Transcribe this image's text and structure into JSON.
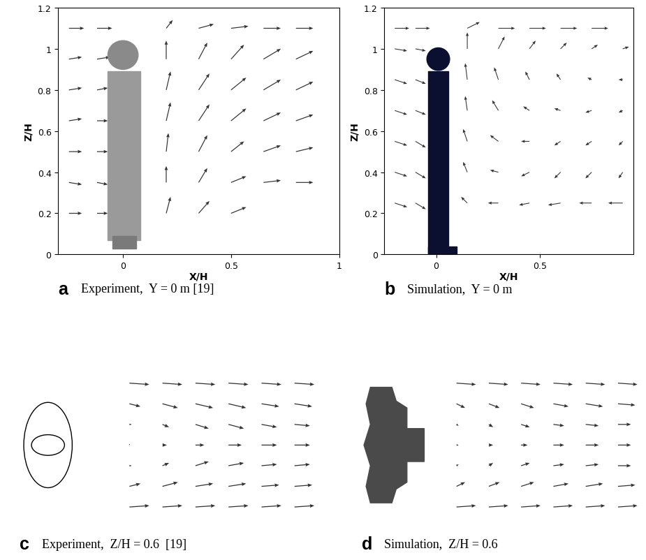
{
  "chart_data": [
    {
      "type": "quiver",
      "panel": "a",
      "caption": "Experiment,  Y = 0 m [19]",
      "x_label": "X/H",
      "y_label": "Z/H",
      "xlim": [
        -0.3,
        1
      ],
      "ylim": [
        0,
        1.2
      ],
      "xticks": [
        0,
        0.5,
        1
      ],
      "yticks": [
        0,
        0.2,
        0.4,
        0.6,
        0.8,
        1,
        1.2
      ],
      "color": "#333333",
      "vectors": [
        [
          -0.25,
          0.2,
          0.06,
          0.0
        ],
        [
          -0.12,
          0.2,
          0.05,
          0.0
        ],
        [
          0.2,
          0.2,
          0.02,
          0.08
        ],
        [
          0.35,
          0.2,
          0.05,
          0.06
        ],
        [
          0.5,
          0.2,
          0.07,
          0.03
        ],
        [
          -0.25,
          0.35,
          0.06,
          -0.01
        ],
        [
          -0.12,
          0.35,
          0.05,
          -0.01
        ],
        [
          0.2,
          0.35,
          0.0,
          0.08
        ],
        [
          0.35,
          0.35,
          0.04,
          0.07
        ],
        [
          0.5,
          0.35,
          0.07,
          0.03
        ],
        [
          0.65,
          0.35,
          0.08,
          0.01
        ],
        [
          0.8,
          0.35,
          0.08,
          0.0
        ],
        [
          -0.25,
          0.5,
          0.06,
          0.0
        ],
        [
          -0.12,
          0.5,
          0.05,
          0.0
        ],
        [
          0.2,
          0.5,
          0.01,
          0.09
        ],
        [
          0.35,
          0.5,
          0.04,
          0.08
        ],
        [
          0.5,
          0.5,
          0.06,
          0.05
        ],
        [
          0.65,
          0.5,
          0.08,
          0.03
        ],
        [
          0.8,
          0.5,
          0.08,
          0.02
        ],
        [
          -0.25,
          0.65,
          0.06,
          0.01
        ],
        [
          -0.12,
          0.65,
          0.05,
          0.0
        ],
        [
          0.2,
          0.65,
          0.02,
          0.09
        ],
        [
          0.35,
          0.65,
          0.05,
          0.08
        ],
        [
          0.5,
          0.65,
          0.07,
          0.06
        ],
        [
          0.65,
          0.65,
          0.08,
          0.04
        ],
        [
          0.8,
          0.65,
          0.08,
          0.03
        ],
        [
          -0.25,
          0.8,
          0.06,
          0.01
        ],
        [
          -0.12,
          0.8,
          0.05,
          0.01
        ],
        [
          0.2,
          0.8,
          0.02,
          0.09
        ],
        [
          0.35,
          0.8,
          0.05,
          0.08
        ],
        [
          0.5,
          0.8,
          0.07,
          0.06
        ],
        [
          0.65,
          0.8,
          0.08,
          0.05
        ],
        [
          0.8,
          0.8,
          0.08,
          0.04
        ],
        [
          -0.25,
          0.95,
          0.06,
          0.01
        ],
        [
          -0.12,
          0.95,
          0.06,
          0.01
        ],
        [
          0.2,
          0.95,
          0.0,
          0.09
        ],
        [
          0.35,
          0.95,
          0.04,
          0.08
        ],
        [
          0.5,
          0.95,
          0.06,
          0.07
        ],
        [
          0.65,
          0.95,
          0.08,
          0.05
        ],
        [
          0.8,
          0.95,
          0.08,
          0.04
        ],
        [
          -0.25,
          1.1,
          0.07,
          0.0
        ],
        [
          -0.12,
          1.1,
          0.07,
          0.0
        ],
        [
          0.2,
          1.1,
          0.03,
          0.04
        ],
        [
          0.35,
          1.1,
          0.07,
          0.02
        ],
        [
          0.5,
          1.1,
          0.08,
          0.01
        ],
        [
          0.65,
          1.1,
          0.08,
          0.0
        ],
        [
          0.8,
          1.1,
          0.08,
          0.0
        ]
      ]
    },
    {
      "type": "quiver",
      "panel": "b",
      "caption": "Simulation,  Y = 0 m",
      "x_label": "X/H",
      "y_label": "Z/H",
      "xlim": [
        -0.25,
        0.95
      ],
      "ylim": [
        0,
        1.2
      ],
      "xticks": [
        0,
        0.5
      ],
      "yticks": [
        0,
        0.2,
        0.4,
        0.6,
        0.8,
        1,
        1.2
      ],
      "color": "#333333",
      "vectors": [
        [
          -0.2,
          1.1,
          0.07,
          0.0
        ],
        [
          -0.1,
          1.1,
          0.07,
          0.0
        ],
        [
          0.15,
          1.1,
          0.06,
          0.03
        ],
        [
          0.3,
          1.1,
          0.08,
          0.0
        ],
        [
          0.45,
          1.1,
          0.08,
          0.0
        ],
        [
          0.6,
          1.1,
          0.08,
          0.0
        ],
        [
          0.75,
          1.1,
          0.08,
          0.0
        ],
        [
          -0.2,
          1.0,
          0.06,
          -0.01
        ],
        [
          -0.1,
          1.0,
          0.05,
          -0.01
        ],
        [
          0.15,
          1.0,
          0.0,
          0.08
        ],
        [
          0.3,
          1.0,
          0.03,
          0.06
        ],
        [
          0.45,
          1.0,
          0.03,
          0.04
        ],
        [
          0.6,
          1.0,
          0.03,
          0.03
        ],
        [
          0.75,
          1.0,
          0.03,
          0.02
        ],
        [
          0.9,
          1.0,
          0.03,
          0.01
        ],
        [
          -0.2,
          0.85,
          0.06,
          -0.02
        ],
        [
          -0.1,
          0.85,
          0.05,
          -0.02
        ],
        [
          0.15,
          0.85,
          -0.01,
          0.08
        ],
        [
          0.3,
          0.85,
          -0.02,
          0.06
        ],
        [
          0.45,
          0.85,
          -0.02,
          0.04
        ],
        [
          0.6,
          0.85,
          -0.02,
          0.03
        ],
        [
          0.75,
          0.85,
          -0.02,
          0.01
        ],
        [
          0.9,
          0.85,
          -0.02,
          0.0
        ],
        [
          -0.2,
          0.7,
          0.06,
          -0.02
        ],
        [
          -0.1,
          0.7,
          0.05,
          -0.02
        ],
        [
          0.15,
          0.7,
          -0.01,
          0.07
        ],
        [
          0.3,
          0.7,
          -0.03,
          0.05
        ],
        [
          0.45,
          0.7,
          -0.03,
          0.02
        ],
        [
          0.6,
          0.7,
          -0.03,
          0.01
        ],
        [
          0.75,
          0.7,
          -0.03,
          -0.01
        ],
        [
          0.9,
          0.7,
          -0.02,
          -0.01
        ],
        [
          -0.2,
          0.55,
          0.06,
          -0.02
        ],
        [
          -0.1,
          0.55,
          0.05,
          -0.03
        ],
        [
          0.15,
          0.55,
          -0.02,
          0.06
        ],
        [
          0.3,
          0.55,
          -0.04,
          0.03
        ],
        [
          0.45,
          0.55,
          -0.04,
          0.0
        ],
        [
          0.6,
          0.55,
          -0.03,
          -0.02
        ],
        [
          0.75,
          0.55,
          -0.03,
          -0.02
        ],
        [
          0.9,
          0.55,
          -0.02,
          -0.02
        ],
        [
          -0.2,
          0.4,
          0.06,
          -0.02
        ],
        [
          -0.1,
          0.4,
          0.05,
          -0.03
        ],
        [
          0.15,
          0.4,
          -0.02,
          0.05
        ],
        [
          0.3,
          0.4,
          -0.04,
          0.01
        ],
        [
          0.45,
          0.4,
          -0.04,
          -0.02
        ],
        [
          0.6,
          0.4,
          -0.03,
          -0.03
        ],
        [
          0.75,
          0.4,
          -0.03,
          -0.03
        ],
        [
          0.9,
          0.4,
          -0.02,
          -0.03
        ],
        [
          -0.2,
          0.25,
          0.06,
          -0.02
        ],
        [
          -0.1,
          0.25,
          0.05,
          -0.03
        ],
        [
          0.15,
          0.25,
          -0.03,
          0.03
        ],
        [
          0.3,
          0.25,
          -0.05,
          0.0
        ],
        [
          0.45,
          0.25,
          -0.05,
          -0.01
        ],
        [
          0.6,
          0.25,
          -0.06,
          -0.01
        ],
        [
          0.75,
          0.25,
          -0.06,
          0.0
        ],
        [
          0.9,
          0.25,
          -0.07,
          0.0
        ]
      ]
    },
    {
      "type": "quiver",
      "panel": "c",
      "caption": "Experiment,  Z/H = 0.6  [19]",
      "xlim": [
        -0.3,
        1.05
      ],
      "ylim": [
        -0.55,
        0.55
      ],
      "tick_labels": false,
      "color": "#333333",
      "vectors": [
        [
          0.2,
          0.45,
          0.09,
          -0.01
        ],
        [
          0.35,
          0.45,
          0.09,
          -0.01
        ],
        [
          0.5,
          0.45,
          0.09,
          -0.01
        ],
        [
          0.65,
          0.45,
          0.09,
          -0.01
        ],
        [
          0.8,
          0.45,
          0.09,
          -0.01
        ],
        [
          0.95,
          0.45,
          0.09,
          -0.01
        ],
        [
          0.2,
          0.3,
          0.05,
          -0.02
        ],
        [
          0.35,
          0.3,
          0.07,
          -0.03
        ],
        [
          0.5,
          0.3,
          0.08,
          -0.03
        ],
        [
          0.65,
          0.3,
          0.08,
          -0.03
        ],
        [
          0.8,
          0.3,
          0.08,
          -0.02
        ],
        [
          0.95,
          0.3,
          0.08,
          -0.02
        ],
        [
          0.2,
          0.15,
          0.01,
          0.0
        ],
        [
          0.35,
          0.15,
          0.03,
          -0.02
        ],
        [
          0.5,
          0.15,
          0.06,
          -0.03
        ],
        [
          0.65,
          0.15,
          0.07,
          -0.03
        ],
        [
          0.8,
          0.15,
          0.07,
          -0.02
        ],
        [
          0.95,
          0.15,
          0.07,
          -0.01
        ],
        [
          0.2,
          0.0,
          0.0,
          0.01
        ],
        [
          0.35,
          0.0,
          0.02,
          0.0
        ],
        [
          0.5,
          0.0,
          0.04,
          0.0
        ],
        [
          0.65,
          0.0,
          0.06,
          0.0
        ],
        [
          0.8,
          0.0,
          0.07,
          0.0
        ],
        [
          0.95,
          0.0,
          0.07,
          0.0
        ],
        [
          0.2,
          -0.15,
          0.01,
          0.0
        ],
        [
          0.35,
          -0.15,
          0.03,
          0.02
        ],
        [
          0.5,
          -0.15,
          0.06,
          0.03
        ],
        [
          0.65,
          -0.15,
          0.07,
          0.02
        ],
        [
          0.8,
          -0.15,
          0.07,
          0.01
        ],
        [
          0.95,
          -0.15,
          0.07,
          0.01
        ],
        [
          0.2,
          -0.3,
          0.05,
          0.02
        ],
        [
          0.35,
          -0.3,
          0.07,
          0.03
        ],
        [
          0.5,
          -0.3,
          0.08,
          0.02
        ],
        [
          0.65,
          -0.3,
          0.08,
          0.02
        ],
        [
          0.8,
          -0.3,
          0.08,
          0.01
        ],
        [
          0.95,
          -0.3,
          0.08,
          0.01
        ],
        [
          0.2,
          -0.45,
          0.09,
          0.01
        ],
        [
          0.35,
          -0.45,
          0.09,
          0.01
        ],
        [
          0.5,
          -0.45,
          0.09,
          0.01
        ],
        [
          0.65,
          -0.45,
          0.09,
          0.01
        ],
        [
          0.8,
          -0.45,
          0.09,
          0.01
        ],
        [
          0.95,
          -0.45,
          0.09,
          0.01
        ]
      ]
    },
    {
      "type": "quiver",
      "panel": "d",
      "caption": "Simulation,  Z/H = 0.6",
      "xlim": [
        -0.3,
        1.05
      ],
      "ylim": [
        -0.55,
        0.55
      ],
      "tick_labels": false,
      "color": "#333333",
      "vectors": [
        [
          0.2,
          0.45,
          0.09,
          -0.01
        ],
        [
          0.35,
          0.45,
          0.09,
          -0.01
        ],
        [
          0.5,
          0.45,
          0.09,
          -0.01
        ],
        [
          0.65,
          0.45,
          0.09,
          -0.01
        ],
        [
          0.8,
          0.45,
          0.09,
          -0.01
        ],
        [
          0.95,
          0.45,
          0.09,
          -0.01
        ],
        [
          0.2,
          0.3,
          0.04,
          -0.03
        ],
        [
          0.35,
          0.3,
          0.05,
          -0.03
        ],
        [
          0.5,
          0.3,
          0.06,
          -0.03
        ],
        [
          0.65,
          0.3,
          0.07,
          -0.02
        ],
        [
          0.8,
          0.3,
          0.08,
          -0.02
        ],
        [
          0.95,
          0.3,
          0.08,
          -0.01
        ],
        [
          0.2,
          0.15,
          0.01,
          -0.01
        ],
        [
          0.35,
          0.15,
          0.02,
          -0.02
        ],
        [
          0.5,
          0.15,
          0.04,
          -0.02
        ],
        [
          0.65,
          0.15,
          0.05,
          -0.01
        ],
        [
          0.8,
          0.15,
          0.06,
          -0.01
        ],
        [
          0.95,
          0.15,
          0.06,
          0.0
        ],
        [
          0.2,
          0.0,
          0.01,
          0.0
        ],
        [
          0.35,
          0.0,
          0.02,
          0.0
        ],
        [
          0.5,
          0.0,
          0.03,
          0.0
        ],
        [
          0.65,
          0.0,
          0.05,
          0.0
        ],
        [
          0.8,
          0.0,
          0.06,
          0.0
        ],
        [
          0.95,
          0.0,
          0.06,
          0.0
        ],
        [
          0.2,
          -0.15,
          0.01,
          0.01
        ],
        [
          0.35,
          -0.15,
          0.02,
          0.02
        ],
        [
          0.5,
          -0.15,
          0.04,
          0.02
        ],
        [
          0.65,
          -0.15,
          0.05,
          0.01
        ],
        [
          0.8,
          -0.15,
          0.06,
          0.01
        ],
        [
          0.95,
          -0.15,
          0.06,
          0.0
        ],
        [
          0.2,
          -0.3,
          0.04,
          0.03
        ],
        [
          0.35,
          -0.3,
          0.05,
          0.03
        ],
        [
          0.5,
          -0.3,
          0.06,
          0.03
        ],
        [
          0.65,
          -0.3,
          0.07,
          0.02
        ],
        [
          0.8,
          -0.3,
          0.08,
          0.02
        ],
        [
          0.95,
          -0.3,
          0.08,
          0.01
        ],
        [
          0.2,
          -0.45,
          0.09,
          0.01
        ],
        [
          0.35,
          -0.45,
          0.09,
          0.01
        ],
        [
          0.5,
          -0.45,
          0.09,
          0.01
        ],
        [
          0.65,
          -0.45,
          0.09,
          0.01
        ],
        [
          0.8,
          -0.45,
          0.09,
          0.01
        ],
        [
          0.95,
          -0.45,
          0.09,
          0.01
        ]
      ]
    }
  ]
}
